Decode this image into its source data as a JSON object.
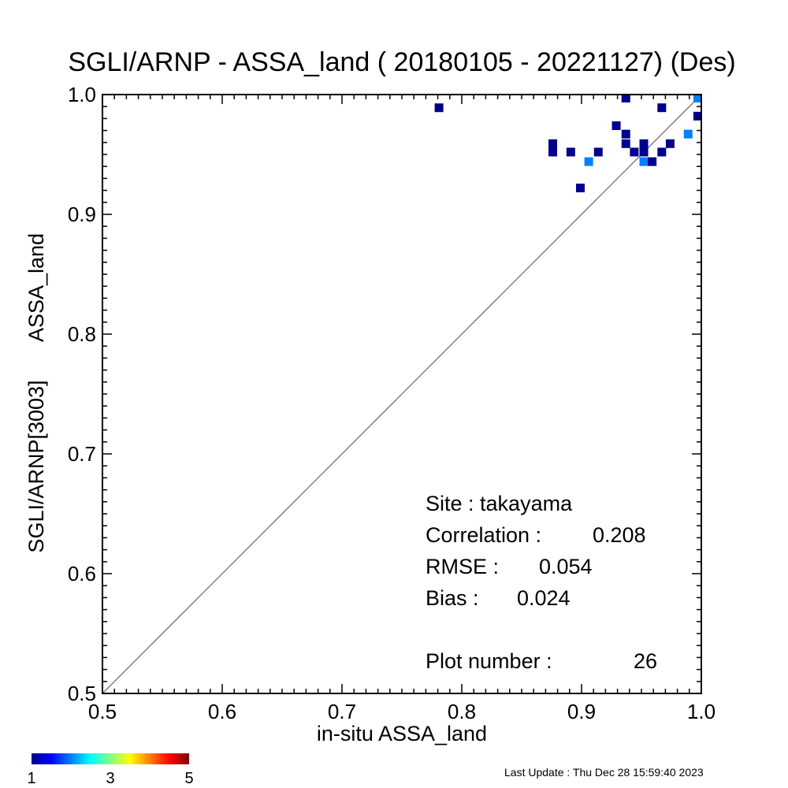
{
  "chart_data": {
    "type": "scatter",
    "title": "SGLI/ARNP - ASSA_land ( 20180105 - 20221127) (Des)",
    "xlabel": "in-situ ASSA_land",
    "ylabel_line1": "SGLI/ARNP[3003]",
    "ylabel_line2": "ASSA_land",
    "xlim": [
      0.5,
      1.0
    ],
    "ylim": [
      0.5,
      1.0
    ],
    "x_ticks": [
      "0.5",
      "0.6",
      "0.7",
      "0.8",
      "0.9",
      "1.0"
    ],
    "y_ticks": [
      "0.5",
      "0.6",
      "0.7",
      "0.8",
      "0.9",
      "1.0"
    ],
    "one_to_one_line": true,
    "points": [
      {
        "x": 0.781,
        "y": 0.989,
        "count": 1
      },
      {
        "x": 0.876,
        "y": 0.959,
        "count": 1
      },
      {
        "x": 0.876,
        "y": 0.952,
        "count": 1
      },
      {
        "x": 0.891,
        "y": 0.952,
        "count": 1
      },
      {
        "x": 0.899,
        "y": 0.922,
        "count": 1
      },
      {
        "x": 0.906,
        "y": 0.944,
        "count": 2
      },
      {
        "x": 0.914,
        "y": 0.952,
        "count": 1
      },
      {
        "x": 0.929,
        "y": 0.974,
        "count": 1
      },
      {
        "x": 0.937,
        "y": 0.997,
        "count": 1
      },
      {
        "x": 0.937,
        "y": 0.967,
        "count": 1
      },
      {
        "x": 0.937,
        "y": 0.959,
        "count": 1
      },
      {
        "x": 0.944,
        "y": 0.952,
        "count": 1
      },
      {
        "x": 0.952,
        "y": 0.959,
        "count": 1
      },
      {
        "x": 0.952,
        "y": 0.952,
        "count": 1
      },
      {
        "x": 0.952,
        "y": 0.944,
        "count": 2
      },
      {
        "x": 0.959,
        "y": 0.944,
        "count": 1
      },
      {
        "x": 0.967,
        "y": 0.989,
        "count": 1
      },
      {
        "x": 0.967,
        "y": 0.952,
        "count": 1
      },
      {
        "x": 0.974,
        "y": 0.959,
        "count": 1
      },
      {
        "x": 0.989,
        "y": 0.967,
        "count": 2
      },
      {
        "x": 0.997,
        "y": 0.997,
        "count": 2
      },
      {
        "x": 0.997,
        "y": 0.982,
        "count": 1
      }
    ],
    "colorbar": {
      "min_label": "1",
      "mid_label": "3",
      "max_label": "5",
      "range": [
        1,
        5
      ]
    },
    "stats": {
      "site": "Site : takayama",
      "correlation_label": "Correlation :",
      "correlation_value": "0.208",
      "rmse_label": "RMSE :",
      "rmse_value": "0.054",
      "bias_label": "Bias :",
      "bias_value": "0.024",
      "plot_number_label": "Plot number :",
      "plot_number_value": "26"
    }
  },
  "footer": {
    "last_update": "Last Update : Thu Dec 28 15:59:40 2023"
  },
  "colors": {
    "line": "#808080",
    "count_1": "#00008f",
    "count_2": "#0080ff"
  }
}
